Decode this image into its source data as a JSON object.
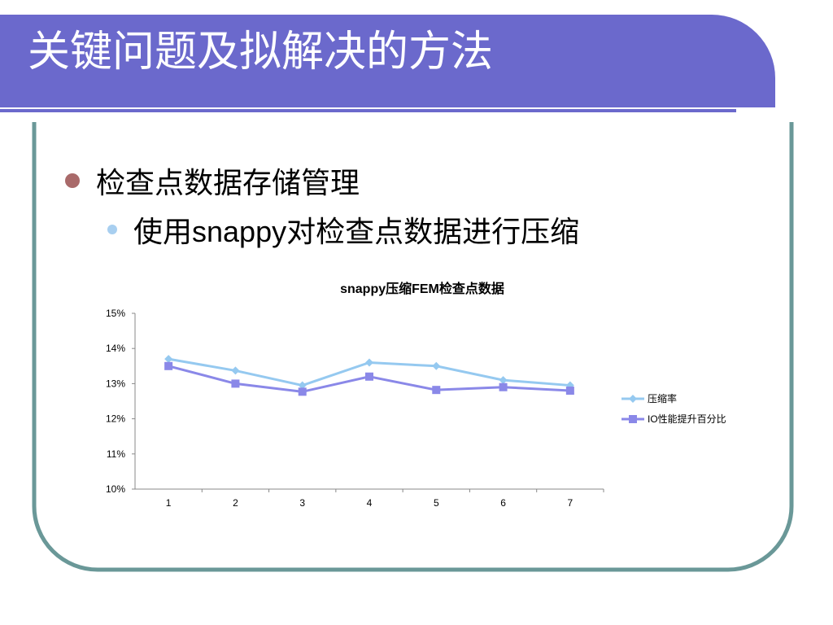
{
  "slide": {
    "title": "关键问题及拟解决的方法",
    "bullets": [
      {
        "level": 1,
        "text": "检查点数据存储管理"
      },
      {
        "level": 2,
        "text_prefix": "使用",
        "text_latin": "snappy",
        "text_suffix": "对检查点数据进行压缩"
      }
    ]
  },
  "colors": {
    "title_bar": "#6b69cc",
    "frame": "#6a9898",
    "bullet1": "#a96a6a",
    "bullet2": "#a8cff0",
    "series1": "#95c9f0",
    "series2": "#8a88e8"
  },
  "chart_data": {
    "type": "line",
    "title": "snappy压缩FEM检查点数据",
    "x": [
      "1",
      "2",
      "3",
      "4",
      "5",
      "6",
      "7"
    ],
    "ylim": [
      0.1,
      0.15
    ],
    "yticks": [
      "10%",
      "11%",
      "12%",
      "13%",
      "14%",
      "15%"
    ],
    "xlabel": "",
    "ylabel": "",
    "grid": false,
    "legend": "right",
    "series": [
      {
        "name": "压缩率",
        "marker": "diamond",
        "values": [
          0.137,
          0.1337,
          0.1295,
          0.136,
          0.135,
          0.131,
          0.1295
        ]
      },
      {
        "name": "IO性能提升百分比",
        "marker": "square",
        "values": [
          0.135,
          0.13,
          0.1277,
          0.132,
          0.1282,
          0.129,
          0.128
        ]
      }
    ]
  }
}
